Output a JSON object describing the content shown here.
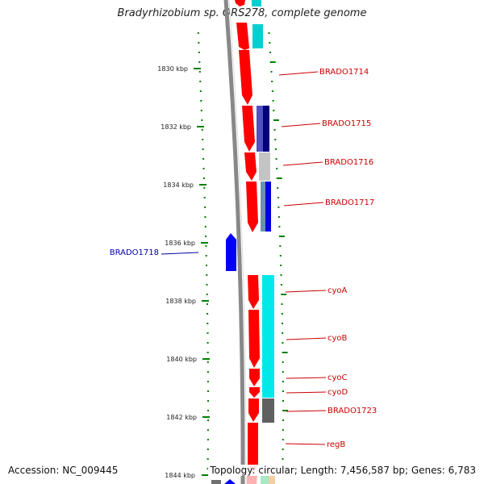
{
  "title": "Bradyrhizobium sp. ORS278, complete genome",
  "axis": {
    "ticks": [
      "1830 kbp",
      "1832 kbp",
      "1834 kbp",
      "1836 kbp",
      "1838 kbp",
      "1840 kbp",
      "1842 kbp",
      "1844 kbp"
    ]
  },
  "genes": {
    "BRADO1714": "BRADO1714",
    "BRADO1715": "BRADO1715",
    "BRADO1716": "BRADO1716",
    "BRADO1717": "BRADO1717",
    "BRADO1718": "BRADO1718",
    "cyoA": "cyoA",
    "cyoB": "cyoB",
    "cyoC": "cyoC",
    "cyoD": "cyoD",
    "BRADO1723": "BRADO1723",
    "regB": "regB"
  },
  "colors": {
    "forward_cds": "#ff0000",
    "reverse_cds": "#0000ff",
    "backbone": "#888888",
    "tick": "#008000",
    "label_forward": "#cc0000",
    "label_reverse": "#0000aa",
    "cyan": "#00e0e0",
    "navy": "#000080",
    "gray": "#c0c0c0",
    "darkgray": "#606060"
  },
  "footer": {
    "accession": "Accession: NC_009445",
    "topology": "Topology: circular; Length: 7,456,587 bp; Genes: 6,783"
  }
}
